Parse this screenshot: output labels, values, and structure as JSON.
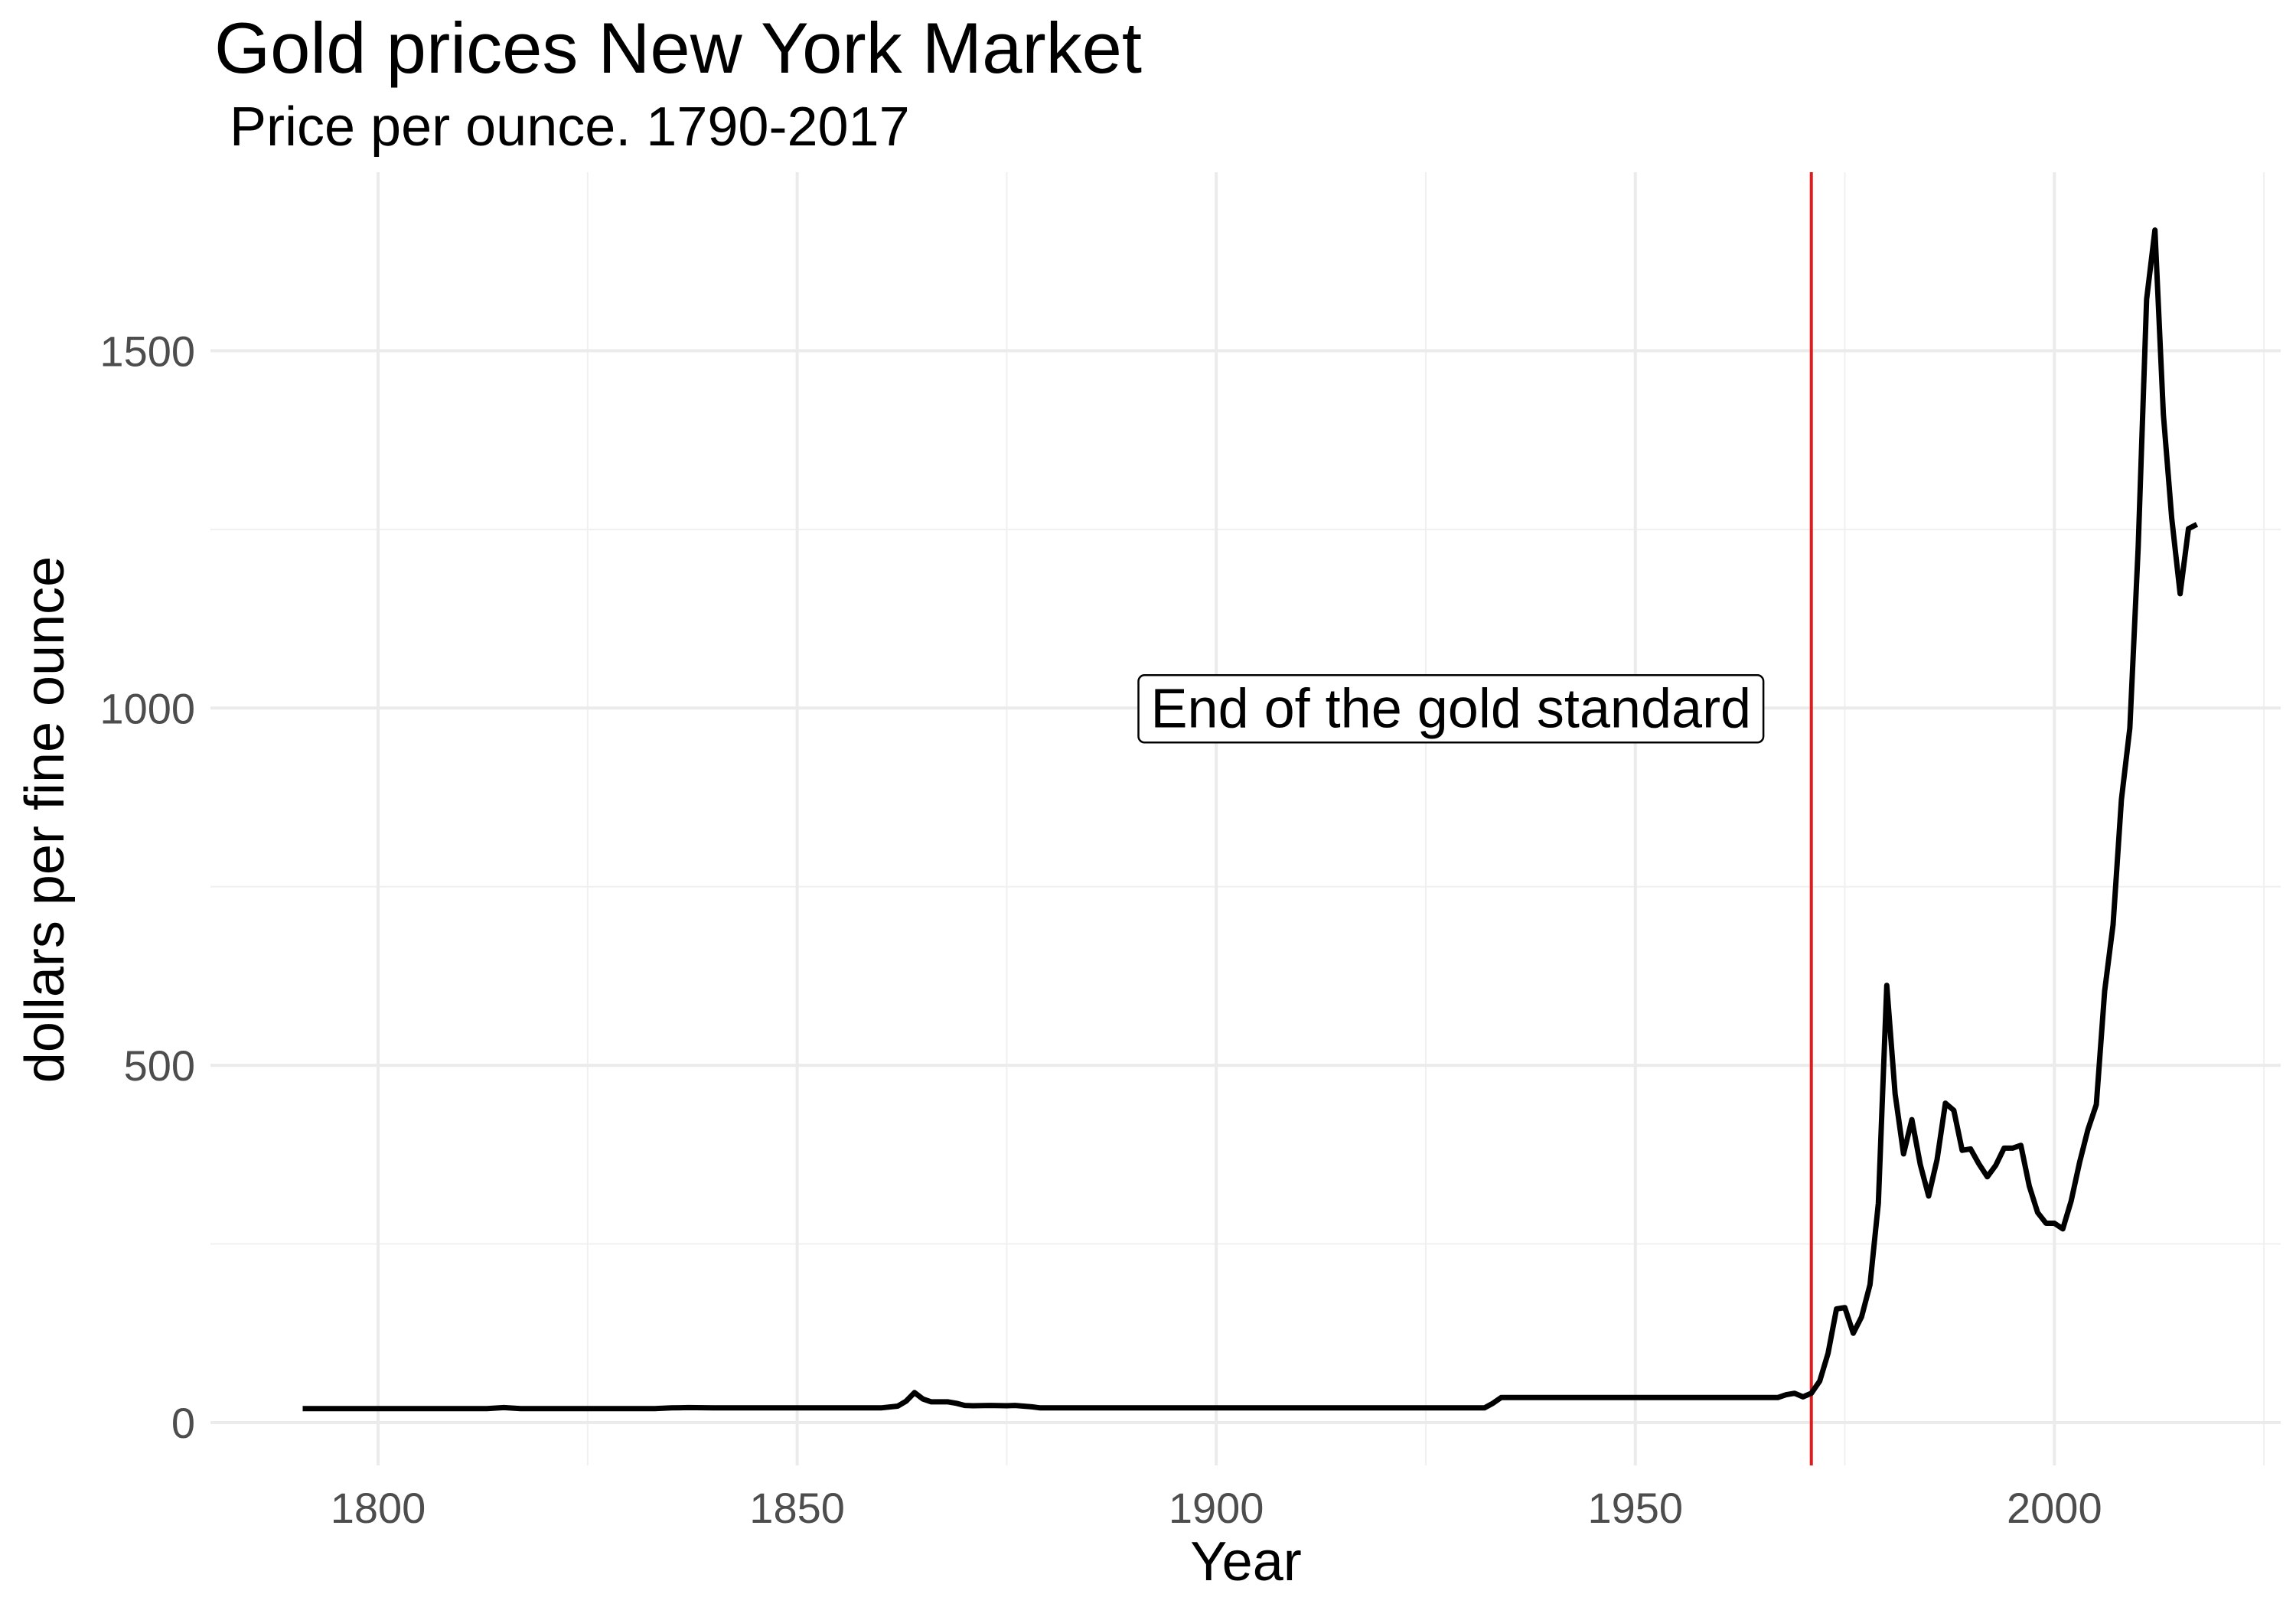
{
  "chart_data": {
    "type": "line",
    "title": "Gold prices New York Market",
    "subtitle": "Price per ounce. 1790-2017",
    "xlabel": "Year",
    "ylabel": "dollars per fine ounce",
    "xlim": [
      1780,
      2027
    ],
    "ylim": [
      -60,
      1750
    ],
    "x_ticks": [
      1800,
      1850,
      1900,
      1950,
      2000
    ],
    "x_minor_ticks": [
      1825,
      1875,
      1925,
      1975,
      2025
    ],
    "y_ticks": [
      0,
      500,
      1000,
      1500
    ],
    "y_minor_ticks": [
      250,
      750,
      1250
    ],
    "grid": true,
    "line_color": "#000000",
    "vline": {
      "x": 1971,
      "color": "#e31a1c"
    },
    "annotation": {
      "text": "End of the gold standard",
      "x": 1928,
      "y": 1000
    },
    "series": [
      {
        "x": [
          1791,
          1800,
          1810,
          1813,
          1815,
          1817,
          1820,
          1830,
          1833,
          1835,
          1837,
          1840,
          1850,
          1860,
          1862,
          1863,
          1864,
          1865,
          1866,
          1868,
          1869,
          1870,
          1871,
          1873,
          1875,
          1876,
          1878,
          1879,
          1880,
          1900,
          1920,
          1932,
          1933,
          1934,
          1940,
          1950,
          1960,
          1967,
          1968,
          1969,
          1970,
          1971,
          1972,
          1973,
          1974,
          1975,
          1976,
          1977,
          1978,
          1979,
          1980,
          1981,
          1982,
          1983,
          1984,
          1985,
          1986,
          1987,
          1988,
          1989,
          1990,
          1991,
          1992,
          1993,
          1994,
          1995,
          1996,
          1997,
          1998,
          1999,
          2000,
          2001,
          2002,
          2003,
          2004,
          2005,
          2006,
          2007,
          2008,
          2009,
          2010,
          2011,
          2012,
          2013,
          2014,
          2015,
          2016,
          2017
        ],
        "values": [
          19.5,
          19.5,
          19.5,
          19.5,
          21,
          19.5,
          19.5,
          19.5,
          19.5,
          20.5,
          21,
          20.5,
          20.5,
          20.5,
          23,
          30,
          42,
          33,
          29,
          29,
          27,
          24,
          23.5,
          24,
          23.5,
          24,
          22,
          20.5,
          20.5,
          20.5,
          20.5,
          20.5,
          27,
          35,
          35,
          35,
          35,
          35,
          39,
          41,
          36,
          41,
          58,
          97,
          159,
          161,
          125,
          148,
          193,
          307,
          612,
          460,
          376,
          424,
          361,
          317,
          368,
          447,
          437,
          381,
          383,
          362,
          344,
          360,
          384,
          384,
          388,
          331,
          294,
          279,
          279,
          271,
          310,
          364,
          410,
          445,
          604,
          697,
          872,
          972,
          1225,
          1572,
          1669,
          1411,
          1266,
          1160,
          1251,
          1257
        ]
      }
    ]
  }
}
